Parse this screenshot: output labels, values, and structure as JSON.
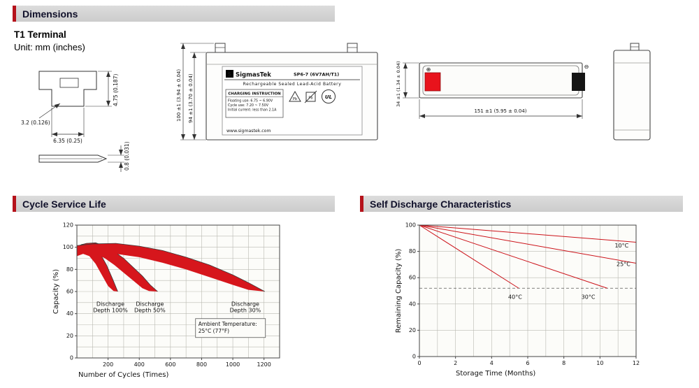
{
  "sections": {
    "dimensions": {
      "title": "Dimensions"
    },
    "cycle_life": {
      "title": "Cycle Service Life"
    },
    "self_discharge": {
      "title": "Self Discharge Characteristics"
    }
  },
  "dimensions_section": {
    "terminal_type": "T1 Terminal",
    "unit": "Unit: mm (inches)",
    "terminal_detail": {
      "height": "4.75 (0.187)",
      "thickness": "3.2 (0.126)",
      "width": "6.35 (0.25)",
      "blade_thickness": "0.8 (0.031)"
    },
    "front_view": {
      "overall_height": "100 ±1 (3.94 ± 0.04)",
      "container_height": "94 ±1 (3.70 ± 0.04)",
      "label": {
        "logo_letter": "S",
        "brand": "SigmasTek",
        "model": "SP6-7 (6V7AH/T1)",
        "battery_type": "Rechargeable Sealed Lead-Acid Battery",
        "charging_title": "CHARGING INSTRUCTION",
        "charging_lines": [
          "Floating use: 6.75 ~ 6.90V",
          "Cycle use: 7.20 ~ 7.50V",
          "Initial current: less than 2.1A"
        ],
        "pb": "Pb",
        "ul": "UL",
        "website": "www.sigmastek.com"
      }
    },
    "top_view": {
      "width_dim": "34 ±1 (1.34 ± 0.04)",
      "length_dim": "151 ±1 (5.95 ± 0.04)",
      "positive_symbol": "⊕",
      "negative_symbol": "⊖"
    }
  },
  "chart_data": [
    {
      "type": "area",
      "title": "Cycle Service Life",
      "xlabel": "Number of Cycles (Times)",
      "ylabel": "Capacity (%)",
      "xlim": [
        0,
        1300
      ],
      "ylim": [
        0,
        120
      ],
      "xticks": [
        200,
        400,
        600,
        800,
        1000,
        1200
      ],
      "yticks": [
        0,
        20,
        40,
        60,
        80,
        100,
        120
      ],
      "xgrid": 100,
      "ygrid": 10,
      "grid": true,
      "band_color": "#d6161c",
      "bands": [
        {
          "name": "Discharge Depth 100%",
          "label_lines": [
            "Discharge",
            "Depth 100%"
          ],
          "label_xy": [
            215,
            47
          ],
          "upper": [
            [
              0,
              100
            ],
            [
              30,
              102.5
            ],
            [
              70,
              103.5
            ],
            [
              110,
              101
            ],
            [
              150,
              94
            ],
            [
              190,
              84
            ],
            [
              230,
              71
            ],
            [
              262,
              60
            ]
          ],
          "lower": [
            [
              0,
              92
            ],
            [
              40,
              94
            ],
            [
              80,
              92
            ],
            [
              120,
              85
            ],
            [
              160,
              75
            ],
            [
              200,
              65
            ],
            [
              235,
              60.5
            ],
            [
              262,
              60
            ]
          ]
        },
        {
          "name": "Discharge Depth 50%",
          "label_lines": [
            "Discharge",
            "Depth 50%"
          ],
          "label_xy": [
            468,
            47
          ],
          "upper": [
            [
              0,
              101
            ],
            [
              60,
              103.5
            ],
            [
              120,
              104
            ],
            [
              180,
              101
            ],
            [
              240,
              96
            ],
            [
              300,
              90
            ],
            [
              360,
              82
            ],
            [
              420,
              74
            ],
            [
              470,
              66
            ],
            [
              518,
              60
            ]
          ],
          "lower": [
            [
              0,
              93
            ],
            [
              60,
              95
            ],
            [
              120,
              94
            ],
            [
              180,
              90
            ],
            [
              240,
              84
            ],
            [
              300,
              77
            ],
            [
              360,
              70
            ],
            [
              420,
              63
            ],
            [
              462,
              60.5
            ],
            [
              518,
              60
            ]
          ]
        },
        {
          "name": "Discharge Depth 30%",
          "label_lines": [
            "Discharge",
            "Depth 30%"
          ],
          "label_xy": [
            1080,
            47
          ],
          "upper": [
            [
              0,
              101.5
            ],
            [
              100,
              103
            ],
            [
              250,
              103.5
            ],
            [
              400,
              101
            ],
            [
              550,
              97
            ],
            [
              700,
              91
            ],
            [
              850,
              84
            ],
            [
              1000,
              75
            ],
            [
              1100,
              68
            ],
            [
              1205,
              60
            ]
          ],
          "lower": [
            [
              0,
              94
            ],
            [
              100,
              95
            ],
            [
              250,
              94
            ],
            [
              400,
              91
            ],
            [
              550,
              86
            ],
            [
              700,
              80
            ],
            [
              850,
              73
            ],
            [
              1000,
              66
            ],
            [
              1100,
              61.5
            ],
            [
              1205,
              60
            ]
          ]
        }
      ],
      "annotation": {
        "lines": [
          "Ambient Temperature:",
          "25°C (77°F)"
        ],
        "xy": [
          985,
          27
        ],
        "w": 100,
        "h": 27
      }
    },
    {
      "type": "line",
      "title": "Self Discharge Characteristics",
      "xlabel": "Storage Time (Months)",
      "ylabel": "Remaining Capacity (%)",
      "xlim": [
        0,
        12
      ],
      "ylim": [
        0,
        100
      ],
      "xticks": [
        0,
        2,
        4,
        6,
        8,
        10,
        12
      ],
      "yticks": [
        0,
        20,
        40,
        60,
        80,
        100
      ],
      "xgrid": 1,
      "ygrid": 20,
      "grid": true,
      "line_color": "#cc1118",
      "series": [
        {
          "name": "10°C",
          "points": [
            [
              0,
              100
            ],
            [
              12,
              87
            ]
          ],
          "label_xy": [
            11.2,
            83
          ]
        },
        {
          "name": "25°C",
          "points": [
            [
              0,
              100
            ],
            [
              12,
              71
            ]
          ],
          "label_xy": [
            11.3,
            69
          ]
        },
        {
          "name": "30°C",
          "points": [
            [
              0,
              100
            ],
            [
              10.4,
              52
            ]
          ],
          "label_xy": [
            9.35,
            44
          ]
        },
        {
          "name": "40°C",
          "points": [
            [
              0,
              100
            ],
            [
              5.5,
              52
            ]
          ],
          "label_xy": [
            5.3,
            44
          ]
        }
      ],
      "threshold_y": 52
    }
  ]
}
